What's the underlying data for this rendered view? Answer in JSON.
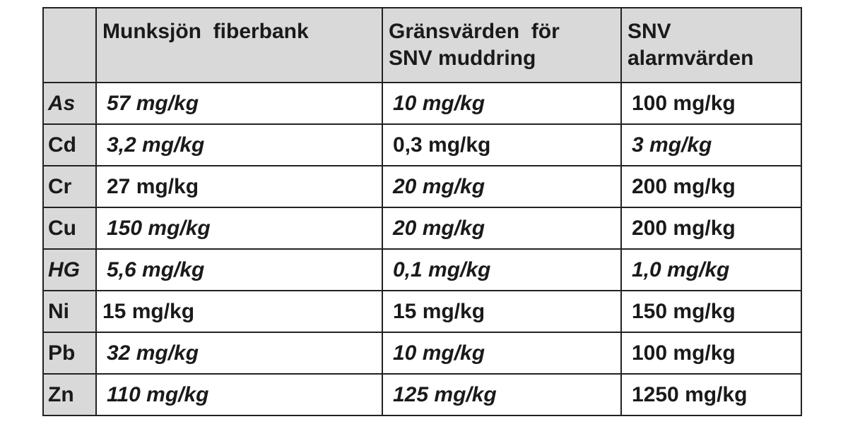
{
  "header": {
    "columns": [
      [
        "Munksjön  fiberbank"
      ],
      [
        "Gränsvärden  för",
        "SNV muddring"
      ],
      [
        "SNV",
        "alarmvärden"
      ]
    ]
  },
  "table": {
    "rows": [
      [
        "As",
        "57 mg/kg",
        "10 mg/kg",
        "100 mg/kg"
      ],
      [
        "Cd",
        "3,2 mg/kg",
        "0,3 mg/kg",
        "3 mg/kg"
      ],
      [
        "Cr",
        "27 mg/kg",
        "20 mg/kg",
        "200 mg/kg"
      ],
      [
        "Cu",
        "150 mg/kg",
        "20 mg/kg",
        "200 mg/kg"
      ],
      [
        "HG",
        "5,6 mg/kg",
        "0,1 mg/kg",
        "1,0 mg/kg"
      ],
      [
        "Ni",
        "15 mg/kg",
        "15 mg/kg",
        "150 mg/kg"
      ],
      [
        "Pb",
        "32 mg/kg",
        "10 mg/kg",
        "100 mg/kg"
      ],
      [
        "Zn",
        "110 mg/kg",
        "125 mg/kg",
        "1250 mg/kg"
      ]
    ]
  }
}
